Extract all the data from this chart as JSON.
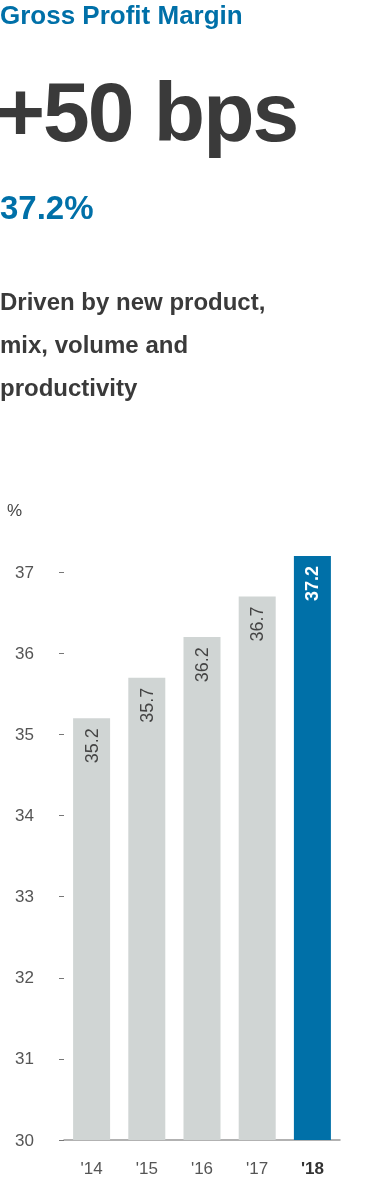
{
  "chart_data": {
    "type": "bar",
    "title": "Gross Profit Margin",
    "subtitle": "+50 bps",
    "annotations": [
      "37.2%",
      "Driven by new product, mix, volume and productivity"
    ],
    "ylabel": "%",
    "categories": [
      "'14",
      "'15",
      "'16",
      "'17",
      "'18"
    ],
    "values": [
      35.2,
      35.7,
      36.2,
      36.7,
      37.2
    ],
    "colors": [
      "#d0d5d4",
      "#d0d5d4",
      "#d0d5d4",
      "#d0d5d4",
      "#0070a8"
    ],
    "ylim": [
      30,
      37.2
    ],
    "yticks": [
      30,
      31,
      32,
      33,
      34,
      35,
      36,
      37
    ],
    "grid": false,
    "data_labels": true
  }
}
